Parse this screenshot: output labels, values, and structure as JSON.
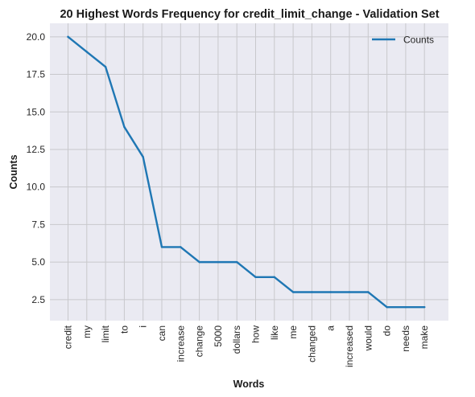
{
  "chart_data": {
    "type": "line",
    "title": "20 Highest Words Frequency for credit_limit_change - Validation Set",
    "xlabel": "Words",
    "ylabel": "Counts",
    "categories": [
      "credit",
      "my",
      "limit",
      "to",
      "i",
      "can",
      "increase",
      "change",
      "5000",
      "dollars",
      "how",
      "like",
      "me",
      "changed",
      "a",
      "increased",
      "would",
      "do",
      "needs",
      "make"
    ],
    "series": [
      {
        "name": "Counts",
        "values": [
          20,
          19,
          18,
          14,
          12,
          6,
          6,
          5,
          5,
          5,
          4,
          4,
          3,
          3,
          3,
          3,
          3,
          2,
          2,
          2
        ],
        "color": "#1f77b4"
      }
    ],
    "ylim": [
      1.1,
      20.9
    ],
    "yticks": [
      "2.5",
      "5.0",
      "7.5",
      "10.0",
      "12.5",
      "15.0",
      "17.5",
      "20.0"
    ],
    "grid": true,
    "legend": "top-right",
    "colors": {
      "plot_background": "#eaeaf2",
      "grid": "#c8c8cc",
      "line": "#1f77b4"
    }
  }
}
